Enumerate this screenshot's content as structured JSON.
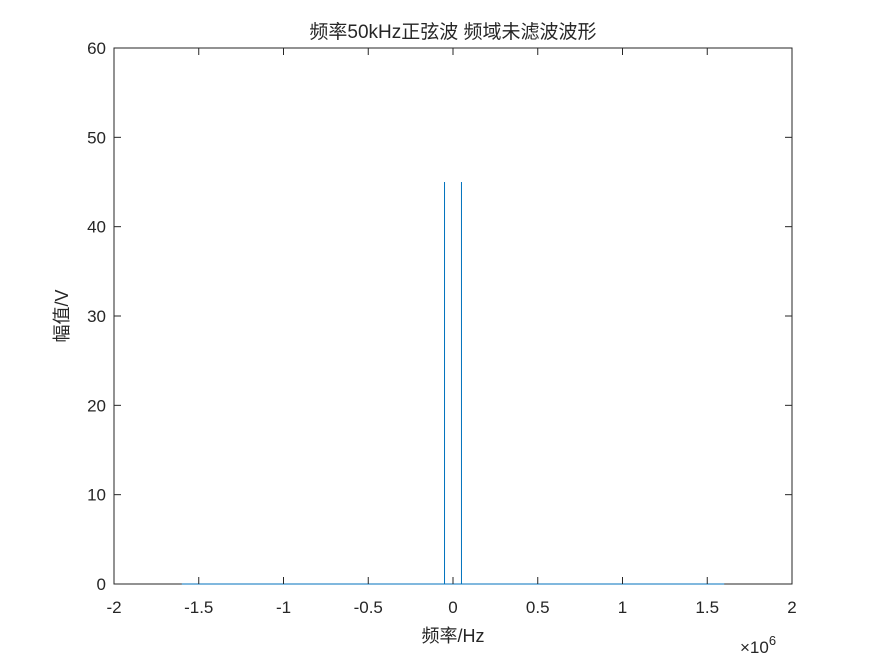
{
  "chart_data": {
    "type": "line",
    "title": "频率50kHz正弦波 频域未滤波波形",
    "xlabel": "频率/Hz",
    "ylabel": "幅值/V",
    "x_exponent_label": "×10",
    "x_exponent_power": "6",
    "xlim": [
      -2000000,
      2000000
    ],
    "ylim": [
      0,
      60
    ],
    "x_ticks": [
      -2000000,
      -1500000,
      -1000000,
      -500000,
      0,
      500000,
      1000000,
      1500000,
      2000000
    ],
    "x_tick_labels": [
      "-2",
      "-1.5",
      "-1",
      "-0.5",
      "0",
      "0.5",
      "1",
      "1.5",
      "2"
    ],
    "y_ticks": [
      0,
      10,
      20,
      30,
      40,
      50,
      60
    ],
    "y_tick_labels": [
      "0",
      "10",
      "20",
      "30",
      "40",
      "50",
      "60"
    ],
    "grid": false,
    "series": [
      {
        "color": "#0072BD",
        "x": [
          -1600000,
          -50000,
          -50000,
          -50000,
          50000,
          50000,
          50000,
          1600000
        ],
        "y": [
          0,
          0,
          45,
          0,
          0,
          45,
          0,
          0
        ]
      }
    ]
  }
}
